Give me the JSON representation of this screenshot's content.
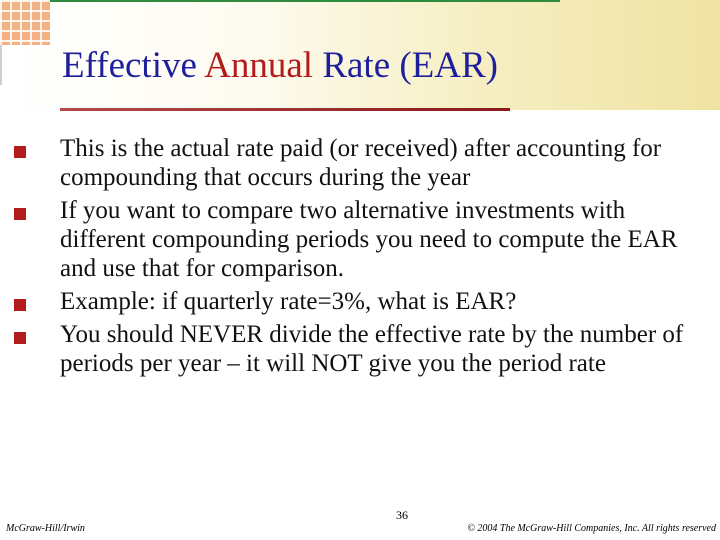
{
  "slide": {
    "title_part1": "Effective ",
    "title_accent": "Annual",
    "title_part2": " Rate (EAR)",
    "bullets": [
      "This is the actual rate paid (or received) after accounting for compounding that occurs during the year",
      "If you want to compare two alternative investments with different compounding periods you need to compute the EAR and use that for comparison.",
      "Example: if quarterly rate=3%, what is EAR?",
      "You should NEVER divide the effective rate by the number of periods per year – it will NOT give you the period rate"
    ],
    "page_number": "36",
    "footer_left": "McGraw-Hill/Irwin",
    "footer_right": "© 2004 The McGraw-Hill Companies, Inc. All rights reserved"
  },
  "colors": {
    "title": "#1f1f9c",
    "accent": "#b21c1c",
    "bullet_marker": "#b21c1c",
    "title_rule": "#8b1a1a"
  }
}
